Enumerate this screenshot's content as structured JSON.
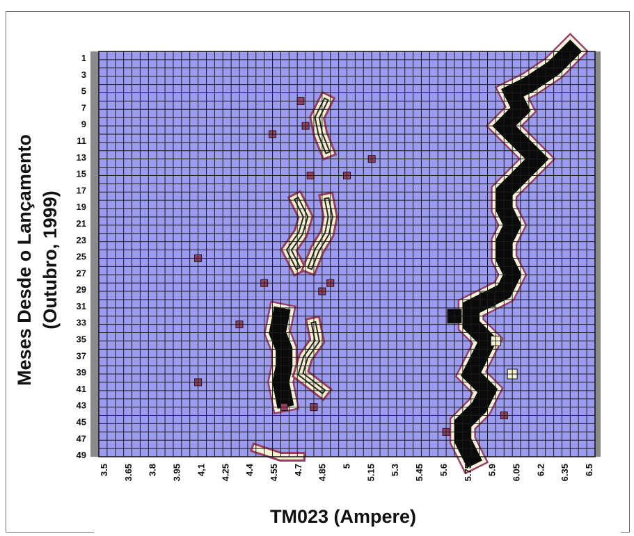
{
  "chart_data": {
    "type": "heatmap",
    "title": "",
    "xlabel": "TM023 (Ampere)",
    "ylabel_lines": [
      "Meses Desde o Lançamento",
      "(Outubro, 1999)"
    ],
    "x_ticks": [
      "3.5",
      "3.65",
      "3.8",
      "3.95",
      "4,1",
      "4.25",
      "4.4",
      "4.55",
      "4.7",
      "4.85",
      "5",
      "5.15",
      "5.3",
      "5.45",
      "5.6",
      "5.75",
      "5.9",
      "6.05",
      "6.2",
      "6.35",
      "6.5"
    ],
    "y_ticks": [
      "1",
      "3",
      "5",
      "7",
      "9",
      "11",
      "13",
      "15",
      "17",
      "19",
      "21",
      "23",
      "25",
      "27",
      "29",
      "31",
      "33",
      "35",
      "37",
      "39",
      "41",
      "43",
      "45",
      "47",
      "49"
    ],
    "xlim": [
      3.5,
      6.5
    ],
    "ylim": [
      1,
      50
    ],
    "grid": true,
    "colors": {
      "background": "#9b9bf0",
      "grid": "#1a1a1a",
      "low": "#9a3f63",
      "mid": "#f6f1cf",
      "high": "#0a0a0a"
    },
    "bands": [
      {
        "name": "",
        "level": "high",
        "path": [
          [
            6.35,
            1
          ],
          [
            6.25,
            3
          ],
          [
            6.1,
            5
          ],
          [
            6.0,
            6
          ],
          [
            6.05,
            8
          ],
          [
            5.95,
            10
          ],
          [
            6.05,
            12
          ],
          [
            6.15,
            14
          ],
          [
            6.05,
            16
          ],
          [
            5.95,
            18
          ],
          [
            5.95,
            20
          ],
          [
            6.0,
            22
          ],
          [
            5.95,
            24
          ],
          [
            5.95,
            26
          ],
          [
            6.0,
            28
          ],
          [
            5.95,
            30
          ],
          [
            5.75,
            32
          ],
          [
            5.75,
            34
          ],
          [
            5.85,
            36
          ],
          [
            5.8,
            38
          ],
          [
            5.75,
            40
          ],
          [
            5.85,
            42
          ],
          [
            5.8,
            44
          ],
          [
            5.7,
            46
          ],
          [
            5.7,
            48
          ],
          [
            5.75,
            50
          ]
        ]
      },
      {
        "name": "",
        "level": "mid",
        "path": [
          [
            4.87,
            7
          ],
          [
            4.82,
            9
          ],
          [
            4.84,
            11
          ],
          [
            4.88,
            13
          ]
        ]
      },
      {
        "name": "",
        "level": "mid",
        "path": [
          [
            4.7,
            19
          ],
          [
            4.75,
            21
          ],
          [
            4.72,
            23
          ],
          [
            4.65,
            25
          ],
          [
            4.7,
            27
          ]
        ]
      },
      {
        "name": "",
        "level": "mid",
        "path": [
          [
            4.88,
            19
          ],
          [
            4.9,
            21
          ],
          [
            4.88,
            23
          ],
          [
            4.82,
            25
          ],
          [
            4.78,
            27
          ]
        ]
      },
      {
        "name": "",
        "level": "high",
        "path": [
          [
            4.6,
            33
          ],
          [
            4.58,
            35
          ],
          [
            4.62,
            37
          ],
          [
            4.62,
            39
          ],
          [
            4.6,
            41
          ],
          [
            4.62,
            43
          ]
        ]
      },
      {
        "name": "",
        "level": "mid",
        "path": [
          [
            4.8,
            34
          ],
          [
            4.82,
            36
          ],
          [
            4.75,
            38
          ],
          [
            4.72,
            40
          ],
          [
            4.85,
            42
          ]
        ]
      },
      {
        "name": "",
        "level": "low",
        "path": [
          [
            4.45,
            49
          ],
          [
            4.6,
            50
          ],
          [
            4.72,
            50
          ]
        ]
      }
    ],
    "spots": [
      [
        4.55,
        11,
        "low"
      ],
      [
        5.15,
        14,
        "low"
      ],
      [
        5.0,
        16,
        "low"
      ],
      [
        4.78,
        16,
        "low"
      ],
      [
        4.72,
        7,
        "low"
      ],
      [
        4.75,
        10,
        "low"
      ],
      [
        4.9,
        29,
        "low"
      ],
      [
        4.85,
        30,
        "low"
      ],
      [
        4.35,
        34,
        "low"
      ],
      [
        4.62,
        44,
        "low"
      ],
      [
        4.8,
        44,
        "low"
      ],
      [
        4.5,
        29,
        "low"
      ],
      [
        5.65,
        33,
        "high"
      ],
      [
        5.85,
        31,
        "high"
      ],
      [
        5.9,
        36,
        "mid"
      ],
      [
        6.0,
        40,
        "mid"
      ],
      [
        5.95,
        45,
        "low"
      ],
      [
        5.6,
        47,
        "low"
      ],
      [
        4.1,
        26,
        "low"
      ],
      [
        4.1,
        41,
        "low"
      ]
    ]
  }
}
